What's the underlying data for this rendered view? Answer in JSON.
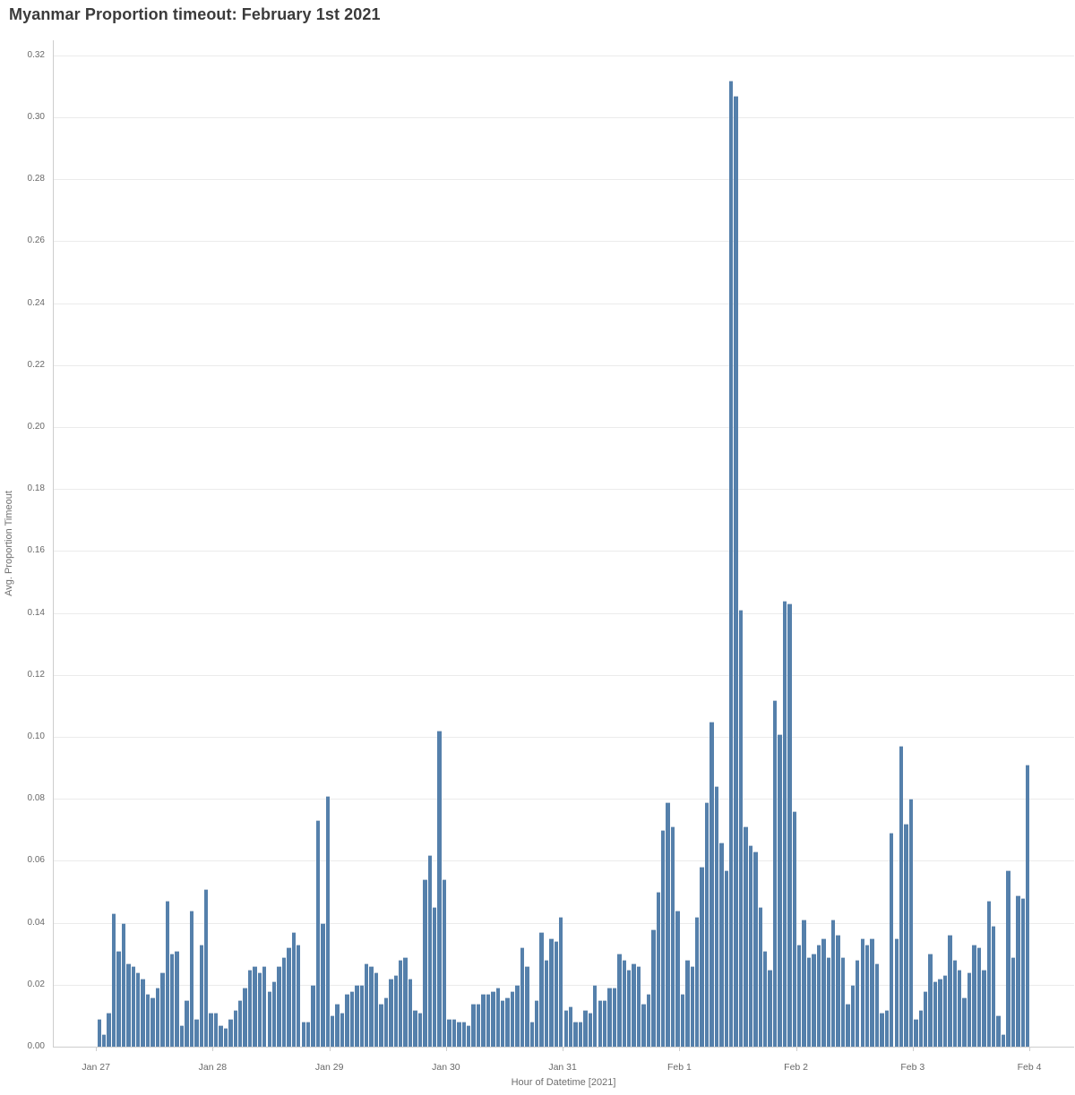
{
  "title": "Myanmar Proportion timeout: February 1st 2021",
  "chart_data": {
    "type": "bar",
    "title": "Myanmar Proportion timeout: February 1st 2021",
    "xlabel": "Hour of Datetime [2021]",
    "ylabel": "Avg. Proportion Timeout",
    "granularity": "hourly",
    "ylim": [
      0,
      0.325
    ],
    "y_tick_step": 0.02,
    "y_ticks": [
      "0.00",
      "0.02",
      "0.04",
      "0.06",
      "0.08",
      "0.10",
      "0.12",
      "0.14",
      "0.16",
      "0.18",
      "0.20",
      "0.22",
      "0.24",
      "0.26",
      "0.28",
      "0.30",
      "0.32"
    ],
    "x_tick_labels": [
      "Jan 27",
      "Jan 28",
      "Jan 29",
      "Jan 30",
      "Jan 31",
      "Feb 1",
      "Feb 2",
      "Feb 3",
      "Feb 4"
    ],
    "grid": true,
    "legend": "none",
    "bar_color": "#5580ab",
    "days": [
      {
        "date": "Jan 27",
        "values": [
          0.009,
          0.004,
          0.011,
          0.043,
          0.031,
          0.04,
          0.027,
          0.026,
          0.024,
          0.022,
          0.017,
          0.016,
          0.019,
          0.024,
          0.047,
          0.03,
          0.031,
          0.007,
          0.015,
          0.044,
          0.009,
          0.033,
          0.051,
          0.011
        ]
      },
      {
        "date": "Jan 28",
        "values": [
          0.011,
          0.007,
          0.006,
          0.009,
          0.012,
          0.015,
          0.019,
          0.025,
          0.026,
          0.024,
          0.026,
          0.018,
          0.021,
          0.026,
          0.029,
          0.032,
          0.037,
          0.033,
          0.008,
          0.008,
          0.02,
          0.073,
          0.04,
          0.081
        ]
      },
      {
        "date": "Jan 29",
        "values": [
          0.01,
          0.014,
          0.011,
          0.017,
          0.018,
          0.02,
          0.02,
          0.027,
          0.026,
          0.024,
          0.014,
          0.016,
          0.022,
          0.023,
          0.028,
          0.029,
          0.022,
          0.012,
          0.011,
          0.054,
          0.062,
          0.045,
          0.102,
          0.054
        ]
      },
      {
        "date": "Jan 30",
        "values": [
          0.009,
          0.009,
          0.008,
          0.008,
          0.007,
          0.014,
          0.014,
          0.017,
          0.017,
          0.018,
          0.019,
          0.015,
          0.016,
          0.018,
          0.02,
          0.032,
          0.026,
          0.008,
          0.015,
          0.037,
          0.028,
          0.035,
          0.034,
          0.042
        ]
      },
      {
        "date": "Jan 31",
        "values": [
          0.012,
          0.013,
          0.008,
          0.008,
          0.012,
          0.011,
          0.02,
          0.015,
          0.015,
          0.019,
          0.019,
          0.03,
          0.028,
          0.025,
          0.027,
          0.026,
          0.014,
          0.017,
          0.038,
          0.05,
          0.07,
          0.079,
          0.071,
          0.044
        ]
      },
      {
        "date": "Feb 1",
        "values": [
          0.017,
          0.028,
          0.026,
          0.042,
          0.058,
          0.079,
          0.105,
          0.084,
          0.066,
          0.057,
          0.312,
          0.307,
          0.141,
          0.071,
          0.065,
          0.063,
          0.045,
          0.031,
          0.025,
          0.112,
          0.101,
          0.144,
          0.143,
          0.076
        ]
      },
      {
        "date": "Feb 2",
        "values": [
          0.033,
          0.041,
          0.029,
          0.03,
          0.033,
          0.035,
          0.029,
          0.041,
          0.036,
          0.029,
          0.014,
          0.02,
          0.028,
          0.035,
          0.033,
          0.035,
          0.027,
          0.011,
          0.012,
          0.069,
          0.035,
          0.097,
          0.072,
          0.08
        ]
      },
      {
        "date": "Feb 3",
        "values": [
          0.009,
          0.012,
          0.018,
          0.03,
          0.021,
          0.022,
          0.023,
          0.036,
          0.028,
          0.025,
          0.016,
          0.024,
          0.033,
          0.032,
          0.025,
          0.047,
          0.039,
          0.01,
          0.004,
          0.057,
          0.029,
          0.049,
          0.048,
          0.091
        ]
      }
    ]
  }
}
